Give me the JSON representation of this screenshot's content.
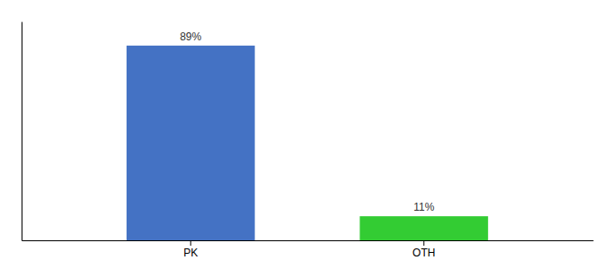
{
  "chart_data": {
    "type": "bar",
    "categories": [
      "PK",
      "OTH"
    ],
    "values": [
      89,
      11
    ],
    "value_labels": [
      "89%",
      "11%"
    ],
    "colors": [
      "#4472c4",
      "#33cc33"
    ],
    "ylim": [
      0,
      100
    ],
    "data_labels": true,
    "tick_labels": "x"
  }
}
